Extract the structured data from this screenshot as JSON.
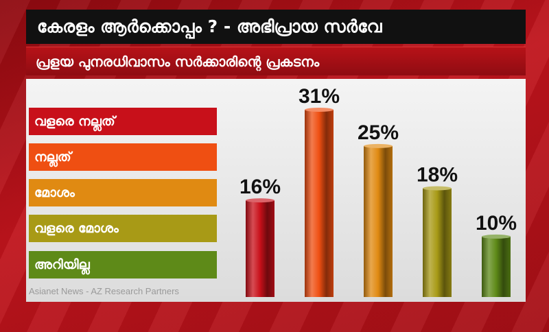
{
  "header": {
    "title": "കേരളം ആർക്കൊപ്പം ? - അഭിപ്രായ സർവേ",
    "subtitle": "പ്രളയ പുനരധിവാസം സർക്കാരിന്റെ പ്രകടനം"
  },
  "source": "Asianet News - AZ Research Partners",
  "colors": {
    "very_good": "#c8101a",
    "good": "#ef4f12",
    "bad": "#e08a12",
    "very_bad": "#a89a16",
    "dont_know": "#5e8a18"
  },
  "chart_data": {
    "type": "bar",
    "title": "പ്രളയ പുനരധിവാസം സർക്കാരിന്റെ പ്രകടനം",
    "categories": [
      "വളരെ നല്ലത്",
      "നല്ലത്",
      "മോശം",
      "വളരെ മോശം",
      "അറിയില്ല"
    ],
    "values": [
      16,
      31,
      25,
      18,
      10
    ],
    "value_labels": [
      "16%",
      "31%",
      "25%",
      "18%",
      "10%"
    ],
    "unit": "%",
    "ylim": [
      0,
      35
    ],
    "legend": "left",
    "grid": false
  }
}
